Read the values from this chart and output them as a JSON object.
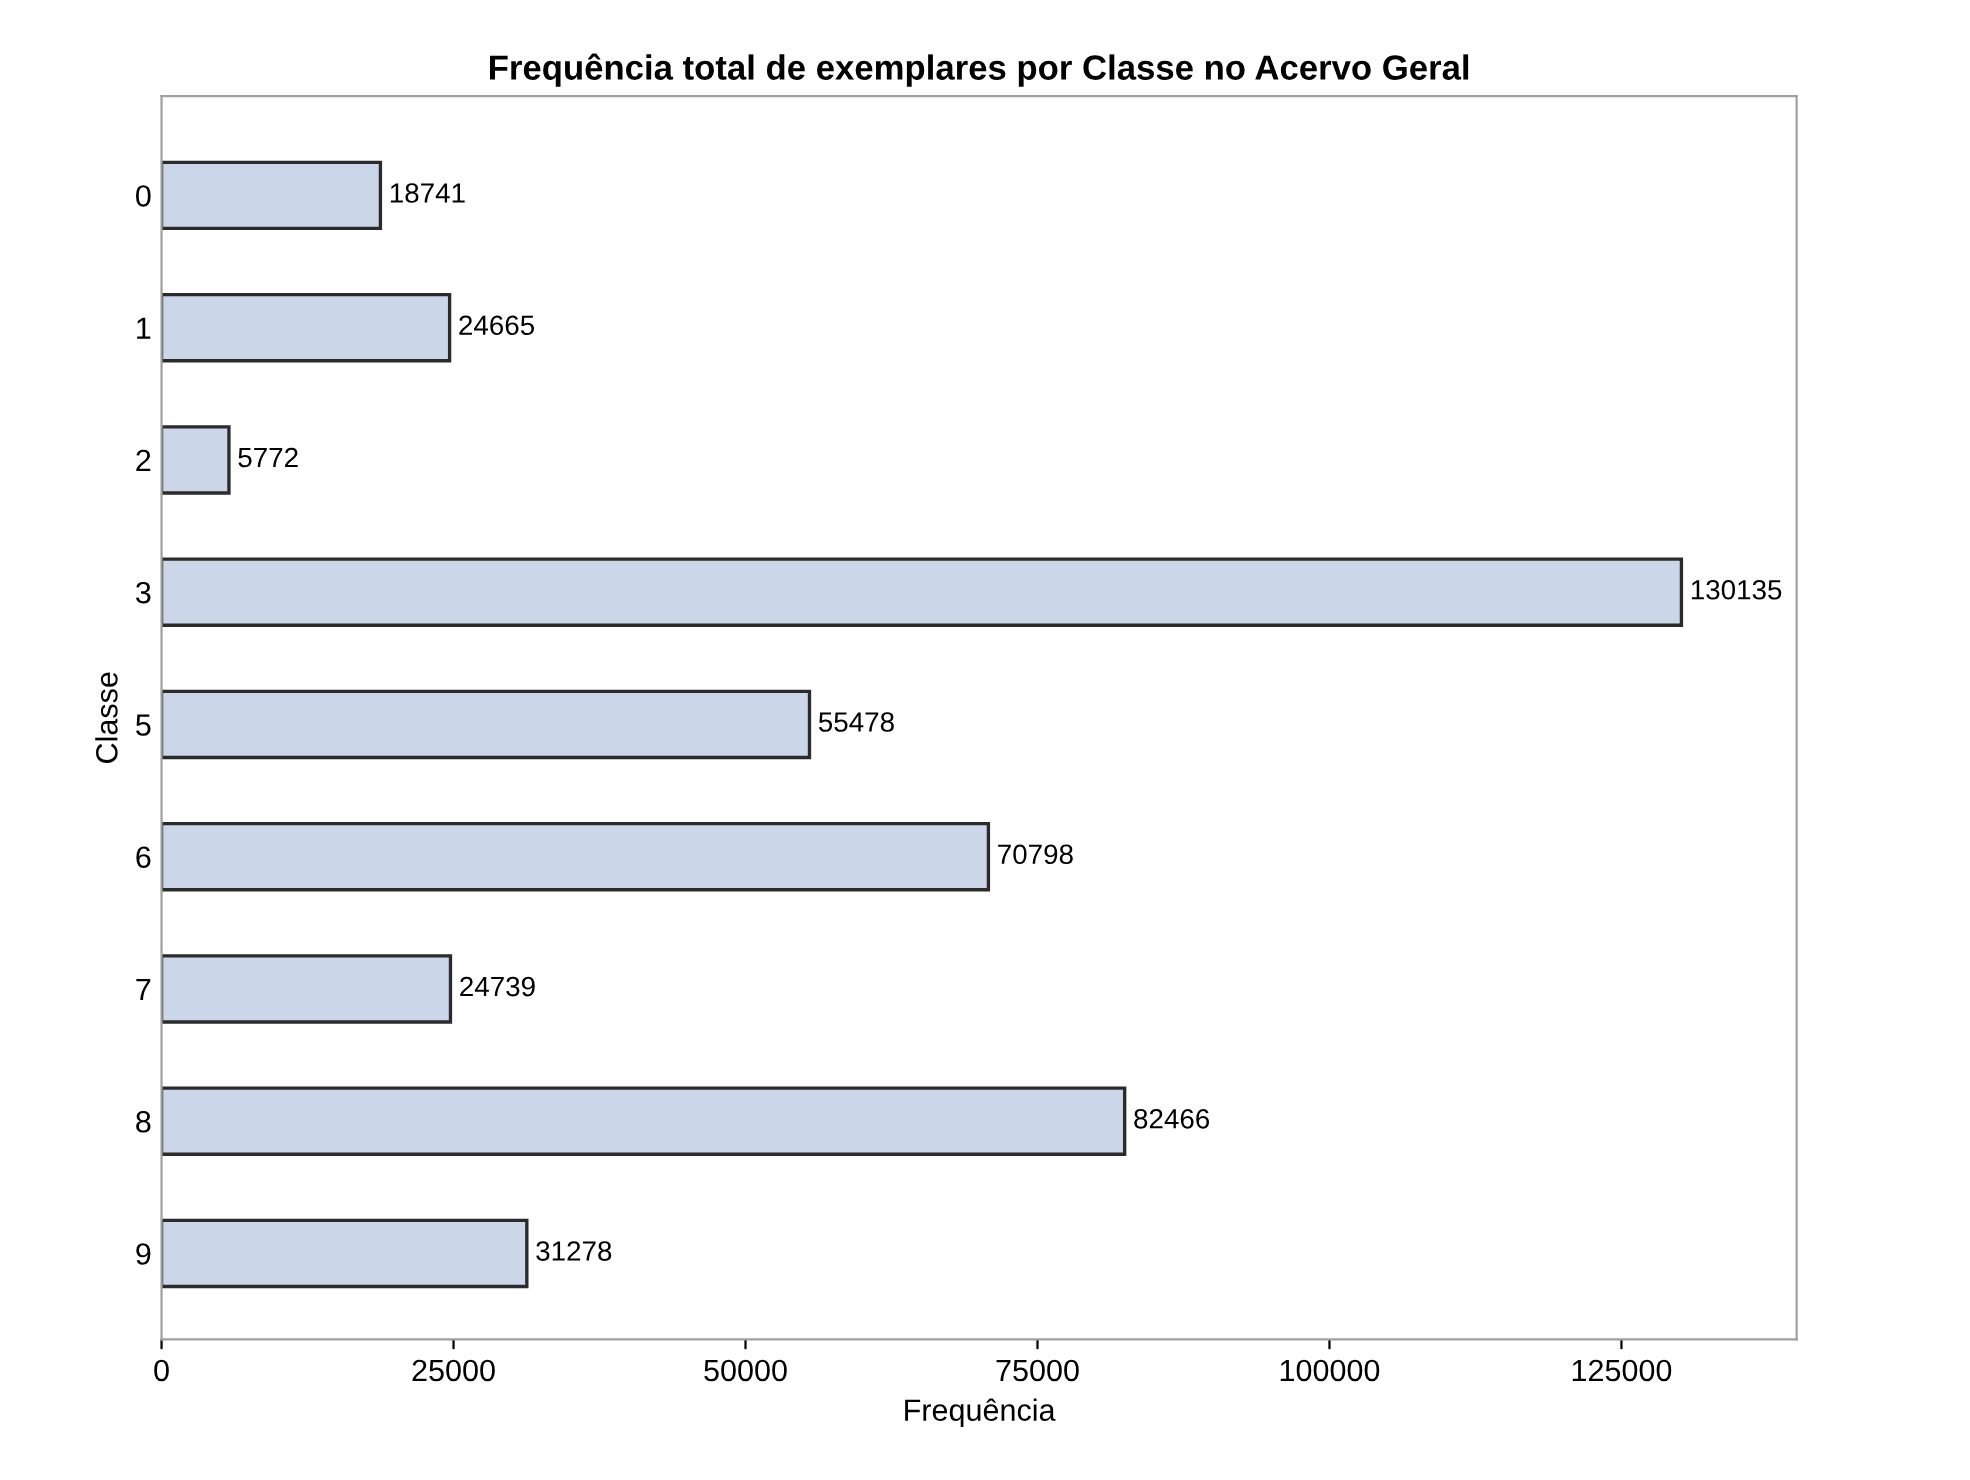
{
  "chart_data": {
    "type": "bar",
    "orientation": "horizontal",
    "title": "Frequência total de exemplares por Classe no Acervo Geral",
    "xlabel": "Frequência",
    "ylabel": "Classe",
    "categories": [
      "0",
      "1",
      "2",
      "3",
      "5",
      "6",
      "7",
      "8",
      "9"
    ],
    "values": [
      18741,
      24665,
      5772,
      130135,
      55478,
      70798,
      24739,
      82466,
      31278
    ],
    "color": "#cbd7e8",
    "xlim": [
      0,
      140000
    ],
    "xticks": [
      0,
      25000,
      50000,
      75000,
      100000,
      125000
    ],
    "data_labels": true,
    "grid": false,
    "legend": false
  }
}
